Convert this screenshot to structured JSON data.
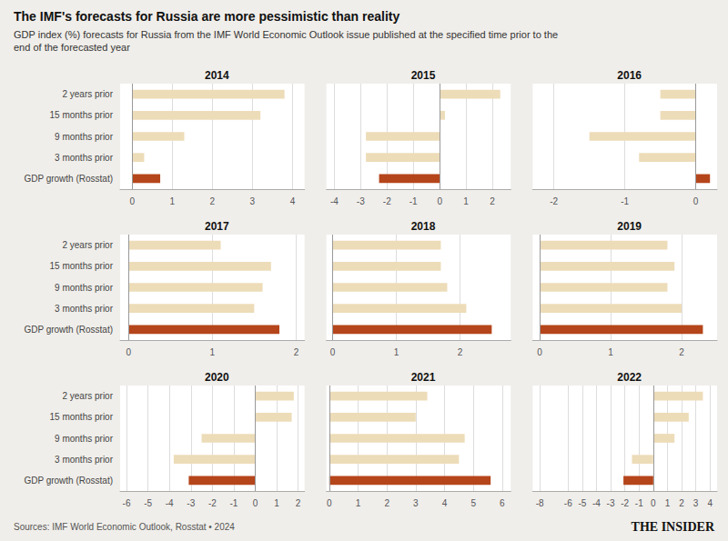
{
  "title": "The IMF's forecasts for Russia are more pessimistic than reality",
  "subtitle": "GDP index (%) forecasts for Russia from the IMF World Economic Outlook issue published at the specified time prior to the\nend of the forecasted year",
  "annotations": [
    "Sources: IMF World Economic Outlook, Rosstat • 2024",
    "THE INSIDER"
  ],
  "chart_data": [
    {
      "type": "bar",
      "title": "2014",
      "orientation": "horizontal",
      "grid": true,
      "categories": [
        "2 years prior",
        "15 months prior",
        "9 months prior",
        "3 months prior",
        "GDP growth (Rosstat)"
      ],
      "values": [
        3.8,
        3.2,
        1.3,
        0.3,
        0.7
      ],
      "colors": [
        "#eddcb8",
        "#eddcb8",
        "#eddcb8",
        "#eddcb8",
        "#b5451b"
      ],
      "xlim": [
        -0.3,
        4.3
      ],
      "xticks": [
        0,
        1,
        2,
        3,
        4
      ]
    },
    {
      "type": "bar",
      "title": "2015",
      "orientation": "horizontal",
      "grid": true,
      "tick_labels": "x",
      "categories": [
        "2 years prior",
        "15 months prior",
        "9 months prior",
        "3 months prior",
        "GDP growth (Rosstat)"
      ],
      "values": [
        2.3,
        0.2,
        -2.8,
        -2.8,
        -2.3
      ],
      "colors": [
        "#eddcb8",
        "#eddcb8",
        "#eddcb8",
        "#eddcb8",
        "#b5451b"
      ],
      "xlim": [
        -4.3,
        2.7
      ],
      "xticks": [
        -4,
        -3,
        -2,
        -1,
        0,
        1,
        2
      ]
    },
    {
      "type": "bar",
      "title": "2016",
      "orientation": "horizontal",
      "grid": true,
      "tick_labels": "x",
      "categories": [
        "2 years prior",
        "15 months prior",
        "9 months prior",
        "3 months prior",
        "GDP growth (Rosstat)"
      ],
      "values": [
        -0.5,
        -0.5,
        -1.5,
        -0.8,
        0.2
      ],
      "colors": [
        "#eddcb8",
        "#eddcb8",
        "#eddcb8",
        "#eddcb8",
        "#b5451b"
      ],
      "xlim": [
        -2.3,
        0.3
      ],
      "xticks": [
        -2,
        -1,
        0
      ]
    },
    {
      "type": "bar",
      "title": "2017",
      "orientation": "horizontal",
      "grid": true,
      "categories": [
        "2 years prior",
        "15 months prior",
        "9 months prior",
        "3 months prior",
        "GDP growth (Rosstat)"
      ],
      "values": [
        1.1,
        1.7,
        1.6,
        1.5,
        1.8
      ],
      "colors": [
        "#eddcb8",
        "#eddcb8",
        "#eddcb8",
        "#eddcb8",
        "#b5451b"
      ],
      "xlim": [
        -0.1,
        2.1
      ],
      "xticks": [
        0,
        1,
        2
      ]
    },
    {
      "type": "bar",
      "title": "2018",
      "orientation": "horizontal",
      "grid": true,
      "tick_labels": "x",
      "categories": [
        "2 years prior",
        "15 months prior",
        "9 months prior",
        "3 months prior",
        "GDP growth (Rosstat)"
      ],
      "values": [
        1.7,
        1.7,
        1.8,
        2.1,
        2.5
      ],
      "colors": [
        "#eddcb8",
        "#eddcb8",
        "#eddcb8",
        "#eddcb8",
        "#b5451b"
      ],
      "xlim": [
        -0.1,
        2.8
      ],
      "xticks": [
        0,
        1,
        2
      ]
    },
    {
      "type": "bar",
      "title": "2019",
      "orientation": "horizontal",
      "grid": true,
      "tick_labels": "x",
      "categories": [
        "2 years prior",
        "15 months prior",
        "9 months prior",
        "3 months prior",
        "GDP growth (Rosstat)"
      ],
      "values": [
        1.8,
        1.9,
        1.8,
        2.0,
        2.3
      ],
      "colors": [
        "#eddcb8",
        "#eddcb8",
        "#eddcb8",
        "#eddcb8",
        "#b5451b"
      ],
      "xlim": [
        -0.1,
        2.5
      ],
      "xticks": [
        0,
        1,
        2
      ]
    },
    {
      "type": "bar",
      "title": "2020",
      "orientation": "horizontal",
      "grid": true,
      "categories": [
        "2 years prior",
        "15 months prior",
        "9 months prior",
        "3 months prior",
        "GDP growth (Rosstat)"
      ],
      "values": [
        1.8,
        1.7,
        -2.5,
        -3.8,
        -3.1
      ],
      "colors": [
        "#eddcb8",
        "#eddcb8",
        "#eddcb8",
        "#eddcb8",
        "#b5451b"
      ],
      "xlim": [
        -6.3,
        2.3
      ],
      "xticks": [
        -6,
        -5,
        -4,
        -3,
        -2,
        -1,
        0,
        1,
        2
      ]
    },
    {
      "type": "bar",
      "title": "2021",
      "orientation": "horizontal",
      "grid": true,
      "tick_labels": "x",
      "categories": [
        "2 years prior",
        "15 months prior",
        "9 months prior",
        "3 months prior",
        "GDP growth (Rosstat)"
      ],
      "values": [
        3.4,
        3.0,
        4.7,
        4.5,
        5.6
      ],
      "colors": [
        "#eddcb8",
        "#eddcb8",
        "#eddcb8",
        "#eddcb8",
        "#b5451b"
      ],
      "xlim": [
        -0.1,
        6.3
      ],
      "xticks": [
        0,
        1,
        2,
        3,
        4,
        5,
        6
      ]
    },
    {
      "type": "bar",
      "title": "2022",
      "orientation": "horizontal",
      "grid": true,
      "tick_labels": "x",
      "categories": [
        "2 years prior",
        "15 months prior",
        "9 months prior",
        "3 months prior",
        "GDP growth (Rosstat)"
      ],
      "values": [
        3.5,
        2.5,
        1.5,
        -1.5,
        -2.1
      ],
      "colors": [
        "#eddcb8",
        "#eddcb8",
        "#eddcb8",
        "#eddcb8",
        "#b5451b"
      ],
      "xlim": [
        -8.5,
        4.5
      ],
      "xticks": [
        -8,
        -6,
        -5,
        -4,
        -3,
        -2,
        -1,
        0,
        1,
        2,
        3,
        4
      ]
    }
  ]
}
